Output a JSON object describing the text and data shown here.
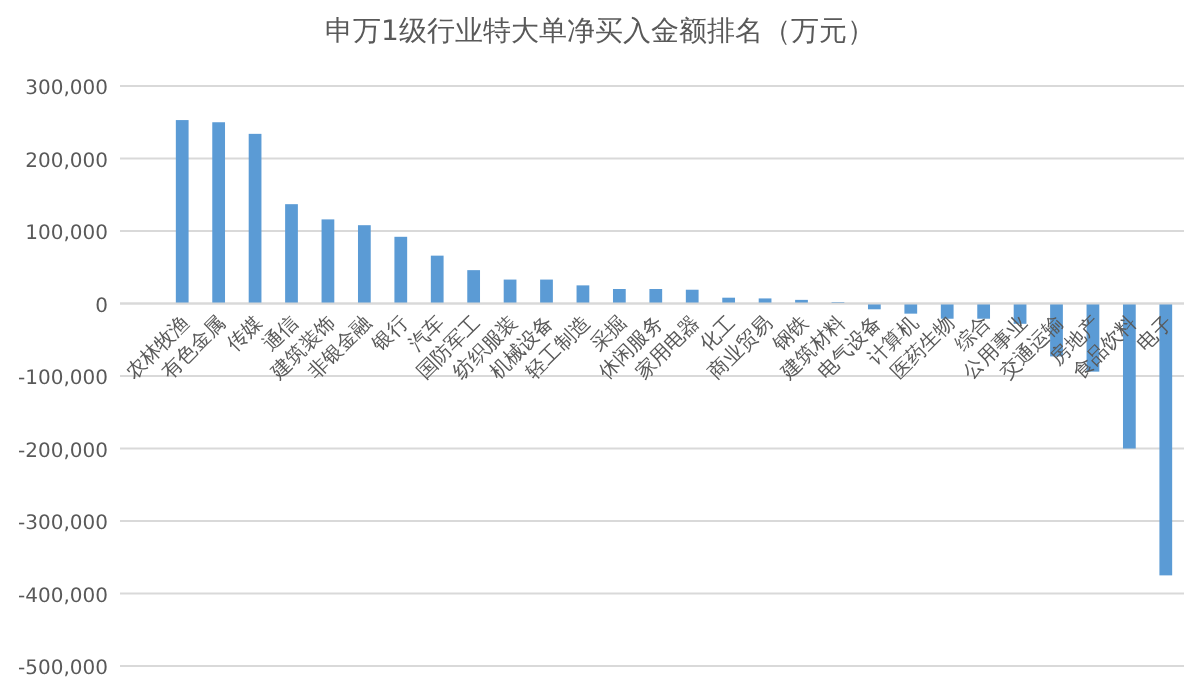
{
  "chart_data": {
    "type": "bar",
    "title": "申万1级行业特大单净买入金额排名（万元）",
    "categories": [
      "农林牧渔",
      "有色金属",
      "传媒",
      "通信",
      "建筑装饰",
      "非银金融",
      "银行",
      "汽车",
      "国防军工",
      "纺织服装",
      "机械设备",
      "轻工制造",
      "采掘",
      "休闲服务",
      "家用电器",
      "化工",
      "商业贸易",
      "钢铁",
      "建筑材料",
      "电气设备",
      "计算机",
      "医药生物",
      "综合",
      "公用事业",
      "交通运输",
      "房地产",
      "食品饮料",
      "电子"
    ],
    "values": [
      253000,
      250000,
      234000,
      137000,
      116000,
      108000,
      92000,
      66000,
      46000,
      33000,
      33000,
      25000,
      20000,
      20000,
      19000,
      8000,
      7000,
      5000,
      2000,
      -8000,
      -14000,
      -21000,
      -21000,
      -28000,
      -73000,
      -94000,
      -200000,
      -375000
    ],
    "color": "#5b9bd5",
    "ylim": [
      -500000,
      300000
    ],
    "yticks": [
      {
        "value": -500000,
        "label": "-500,000"
      },
      {
        "value": -400000,
        "label": "-400,000"
      },
      {
        "value": -300000,
        "label": "-300,000"
      },
      {
        "value": -200000,
        "label": "-200,000"
      },
      {
        "value": -100000,
        "label": "-100,000"
      },
      {
        "value": 0,
        "label": "0"
      },
      {
        "value": 100000,
        "label": "100,000"
      },
      {
        "value": 200000,
        "label": "200,000"
      },
      {
        "value": 300000,
        "label": "300,000"
      }
    ],
    "grid": "y"
  }
}
